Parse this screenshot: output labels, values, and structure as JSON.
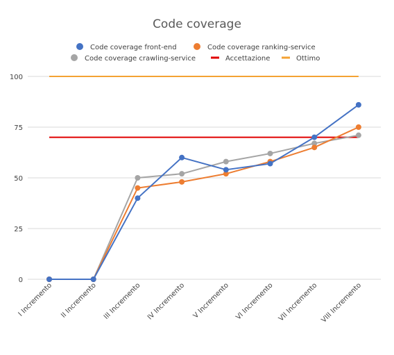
{
  "chart_data": {
    "type": "line",
    "title": "Code coverage",
    "xlabel": "",
    "ylabel": "",
    "ylim": [
      0,
      100
    ],
    "yticks": [
      "0",
      "25",
      "50",
      "75",
      "100"
    ],
    "grid": true,
    "legend_position": "top",
    "categories": [
      "I Incremento",
      "II Incremento",
      "III Incremento",
      "IV Incremento",
      "V Incremento",
      "VI Incremento",
      "VII Incremento",
      "VIII Incremento"
    ],
    "series": [
      {
        "name": "Code coverage front-end",
        "color": "#4472c4",
        "markers": true,
        "values": [
          0,
          0,
          40,
          60,
          54,
          57,
          70,
          86
        ]
      },
      {
        "name": "Code coverage ranking-service",
        "color": "#ed7d31",
        "markers": true,
        "values": [
          0,
          0,
          45,
          48,
          52,
          58,
          65,
          75
        ]
      },
      {
        "name": "Code coverage crawling-service",
        "color": "#a5a5a5",
        "markers": true,
        "values": [
          0,
          0,
          50,
          52,
          58,
          62,
          67,
          71
        ]
      },
      {
        "name": "Accettazione",
        "color": "#e00000",
        "markers": false,
        "values": [
          70,
          70,
          70,
          70,
          70,
          70,
          70,
          70
        ]
      },
      {
        "name": "Ottimo",
        "color": "#f4a233",
        "markers": false,
        "values": [
          100,
          100,
          100,
          100,
          100,
          100,
          100,
          100
        ]
      }
    ]
  }
}
